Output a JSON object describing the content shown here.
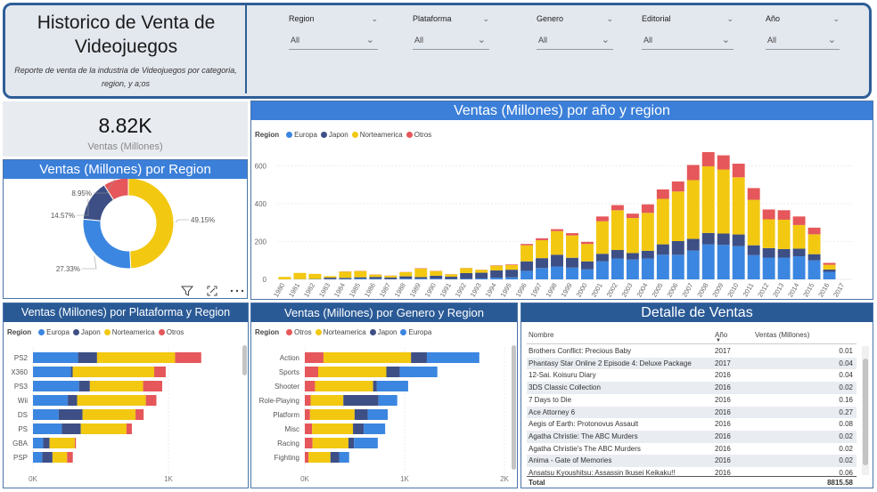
{
  "header": {
    "title": "Historico de Venta de Videojuegos",
    "subtitle": "Reporte de venta de la industria de Videojuegos por categoria, region, y a;os"
  },
  "slicers": [
    {
      "label": "Region",
      "value": "All"
    },
    {
      "label": "Plataforma",
      "value": "All"
    },
    {
      "label": "Genero",
      "value": "All"
    },
    {
      "label": "Editorial",
      "value": "All"
    },
    {
      "label": "Año",
      "value": "All"
    }
  ],
  "kpi": {
    "value": "8.82K",
    "label": "Ventas (Millones)"
  },
  "colors": {
    "Europa": "#3b86e0",
    "Japon": "#3d4f85",
    "Norteamerica": "#f2c811",
    "Otros": "#e5575a",
    "title_bar": "#3b7fd9"
  },
  "visual_header_icons": [
    "filter-icon",
    "focus-mode-icon",
    "more-options-icon"
  ],
  "chart_data": [
    {
      "id": "region_donut",
      "type": "pie",
      "title": "Ventas (Millones) por Region",
      "labels": [
        "Norteamerica",
        "Europa",
        "Japon",
        "Otros"
      ],
      "values": [
        49.15,
        27.33,
        14.57,
        8.95
      ],
      "value_labels": [
        "49.15%",
        "27.33%",
        "14.57%",
        "8.95%"
      ]
    },
    {
      "id": "year_region",
      "type": "bar",
      "stacked": true,
      "title": "Ventas (Millones) por año y region",
      "legend_title": "Region",
      "categories": [
        "1980",
        "1981",
        "1982",
        "1983",
        "1984",
        "1985",
        "1986",
        "1987",
        "1988",
        "1989",
        "1990",
        "1991",
        "1992",
        "1993",
        "1994",
        "1995",
        "1996",
        "1997",
        "1998",
        "1999",
        "2000",
        "2001",
        "2002",
        "2003",
        "2004",
        "2005",
        "2006",
        "2007",
        "2008",
        "2009",
        "2010",
        "2011",
        "2012",
        "2013",
        "2014",
        "2015",
        "2016",
        "2017"
      ],
      "series": [
        {
          "name": "Europa",
          "values": [
            0,
            1,
            2,
            1,
            2,
            4,
            3,
            1,
            4,
            4,
            4,
            2,
            3,
            5,
            9,
            11,
            45,
            60,
            68,
            62,
            53,
            95,
            110,
            105,
            110,
            130,
            130,
            152,
            185,
            182,
            175,
            128,
            115,
            115,
            122,
            100,
            40,
            0
          ]
        },
        {
          "name": "Japon",
          "values": [
            0,
            0,
            0,
            8,
            6,
            7,
            10,
            9,
            12,
            8,
            15,
            12,
            30,
            30,
            38,
            40,
            50,
            52,
            62,
            52,
            42,
            40,
            45,
            34,
            41,
            55,
            72,
            62,
            60,
            60,
            62,
            52,
            50,
            45,
            40,
            33,
            12,
            0
          ]
        },
        {
          "name": "Norteamerica",
          "values": [
            13,
            33,
            27,
            8,
            33,
            33,
            12,
            9,
            22,
            45,
            25,
            12,
            26,
            15,
            25,
            25,
            85,
            95,
            125,
            118,
            92,
            172,
            210,
            185,
            200,
            240,
            262,
            310,
            352,
            338,
            302,
            240,
            152,
            155,
            125,
            105,
            25,
            0
          ]
        },
        {
          "name": "Otros",
          "values": [
            0,
            0,
            0,
            0,
            1,
            1,
            1,
            1,
            1,
            2,
            1,
            1,
            1,
            1,
            2,
            3,
            7,
            10,
            10,
            12,
            11,
            25,
            27,
            23,
            45,
            50,
            53,
            80,
            75,
            75,
            72,
            62,
            52,
            50,
            45,
            35,
            10,
            0
          ]
        }
      ],
      "yticks": [
        "0",
        "200",
        "400",
        "600"
      ],
      "ylim": [
        0,
        700
      ]
    },
    {
      "id": "platform_region",
      "type": "bar",
      "orientation": "horizontal",
      "stacked": true,
      "title": "Ventas (Millones) por Plataforma y Region",
      "legend_title": "Region",
      "categories": [
        "PS2",
        "X360",
        "PS3",
        "Wii",
        "DS",
        "PS",
        "GBA",
        "PSP"
      ],
      "series": [
        {
          "name": "Europa",
          "values": [
            333,
            280,
            340,
            257,
            190,
            213,
            75,
            68
          ]
        },
        {
          "name": "Japon",
          "values": [
            140,
            13,
            80,
            69,
            176,
            140,
            47,
            76
          ]
        },
        {
          "name": "Norteamerica",
          "values": [
            576,
            602,
            393,
            507,
            391,
            337,
            187,
            108
          ]
        },
        {
          "name": "Otros",
          "values": [
            193,
            85,
            141,
            78,
            60,
            40,
            8,
            42
          ]
        }
      ],
      "xticks": [
        "0K",
        "1K"
      ],
      "xlim": [
        0,
        1500
      ]
    },
    {
      "id": "genre_region",
      "type": "bar",
      "orientation": "horizontal",
      "stacked": true,
      "title": "Ventas (Millones) por Genero y Region",
      "legend_title": "Region",
      "categories": [
        "Action",
        "Sports",
        "Shooter",
        "Role-Playing",
        "Platform",
        "Misc",
        "Racing",
        "Fighting"
      ],
      "series": [
        {
          "name": "Otros",
          "values": [
            187,
            134,
            102,
            59,
            52,
            73,
            77,
            37
          ]
        },
        {
          "name": "Norteamerica",
          "values": [
            877,
            683,
            582,
            327,
            447,
            410,
            360,
            220
          ]
        },
        {
          "name": "Japon",
          "values": [
            159,
            135,
            38,
            352,
            131,
            107,
            56,
            87
          ]
        },
        {
          "name": "Europa",
          "values": [
            525,
            376,
            313,
            188,
            201,
            215,
            238,
            100
          ]
        }
      ],
      "xticks": [
        "0K",
        "1K",
        "2K"
      ],
      "xlim": [
        0,
        2000
      ]
    }
  ],
  "table": {
    "title": "Detalle de Ventas",
    "columns": [
      "Nombre",
      "Año",
      "Ventas (Millones)"
    ],
    "rows": [
      {
        "name": "Brothers Conflict: Precious Baby",
        "year": "2017",
        "sales": "0.01"
      },
      {
        "name": "Phantasy Star Online 2 Episode 4: Deluxe Package",
        "year": "2017",
        "sales": "0.04"
      },
      {
        "name": "12-Sai. Koisuru Diary",
        "year": "2016",
        "sales": "0.04"
      },
      {
        "name": "3DS Classic Collection",
        "year": "2016",
        "sales": "0.02"
      },
      {
        "name": "7 Days to Die",
        "year": "2016",
        "sales": "0.16"
      },
      {
        "name": "Ace Attorney 6",
        "year": "2016",
        "sales": "0.27"
      },
      {
        "name": "Aegis of Earth: Protonovus Assault",
        "year": "2016",
        "sales": "0.08"
      },
      {
        "name": "Agatha Christie: The ABC Murders",
        "year": "2016",
        "sales": "0.02"
      },
      {
        "name": "Agatha Christie's The ABC Murders",
        "year": "2016",
        "sales": "0.02"
      },
      {
        "name": "Anima - Gate of Memories",
        "year": "2016",
        "sales": "0.02"
      },
      {
        "name": "Ansatsu Kyoushitsu: Assassin Ikusei Keikaku!!",
        "year": "2016",
        "sales": "0.06"
      }
    ],
    "total_label": "Total",
    "total_value": "8815.58"
  }
}
